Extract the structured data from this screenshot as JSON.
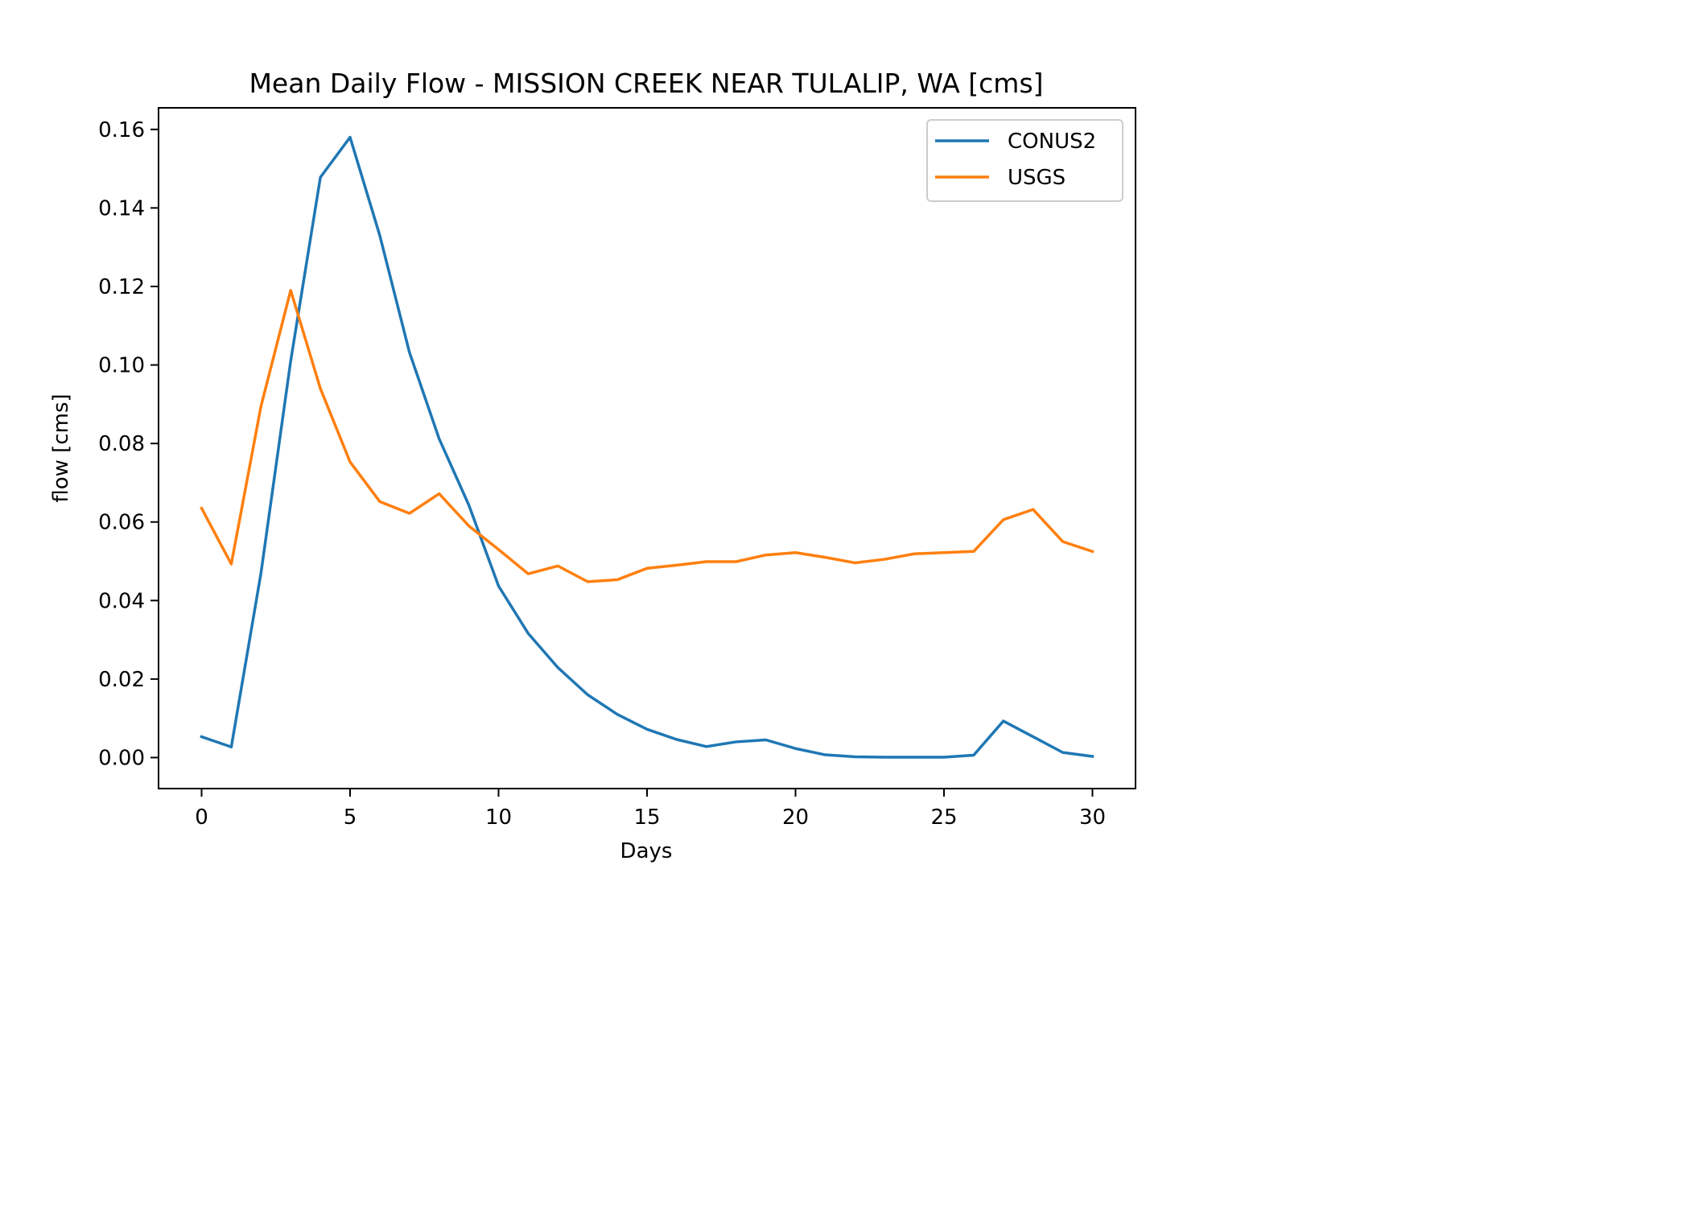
{
  "chart_data": {
    "type": "line",
    "title": "Mean Daily Flow - MISSION CREEK NEAR TULALIP, WA [cms]",
    "xlabel": "Days",
    "ylabel": "flow [cms]",
    "xlim": [
      -1.45,
      31.45
    ],
    "ylim": [
      -0.0079,
      0.1655
    ],
    "xticks": [
      0,
      5,
      10,
      15,
      20,
      25,
      30
    ],
    "yticks": [
      0.0,
      0.02,
      0.04,
      0.06,
      0.08,
      0.1,
      0.12,
      0.14,
      0.16
    ],
    "grid": false,
    "legend_position": "top-right",
    "x": [
      0,
      1,
      2,
      3,
      4,
      5,
      6,
      7,
      8,
      9,
      10,
      11,
      12,
      13,
      14,
      15,
      16,
      17,
      18,
      19,
      20,
      21,
      22,
      23,
      24,
      25,
      26,
      27,
      28,
      29,
      30
    ],
    "series": [
      {
        "name": "CONUS2",
        "color": "#1f77b4",
        "values": [
          0.0053,
          0.0027,
          0.047,
          0.101,
          0.1478,
          0.158,
          0.133,
          0.1032,
          0.0812,
          0.0643,
          0.0437,
          0.0316,
          0.0229,
          0.016,
          0.011,
          0.0072,
          0.0046,
          0.0028,
          0.004,
          0.0045,
          0.0023,
          0.0007,
          0.0002,
          0.0001,
          0.0001,
          0.0001,
          0.0006,
          0.0093,
          0.0053,
          0.0013,
          0.0003
        ]
      },
      {
        "name": "USGS",
        "color": "#ff7f0e",
        "values": [
          0.0635,
          0.0493,
          0.0895,
          0.119,
          0.094,
          0.0753,
          0.0652,
          0.0622,
          0.0672,
          0.059,
          0.053,
          0.0468,
          0.0488,
          0.0448,
          0.0453,
          0.0482,
          0.049,
          0.0499,
          0.0499,
          0.0516,
          0.0522,
          0.051,
          0.0496,
          0.0505,
          0.0519,
          0.0522,
          0.0525,
          0.0606,
          0.0632,
          0.055,
          0.0525
        ]
      }
    ]
  }
}
